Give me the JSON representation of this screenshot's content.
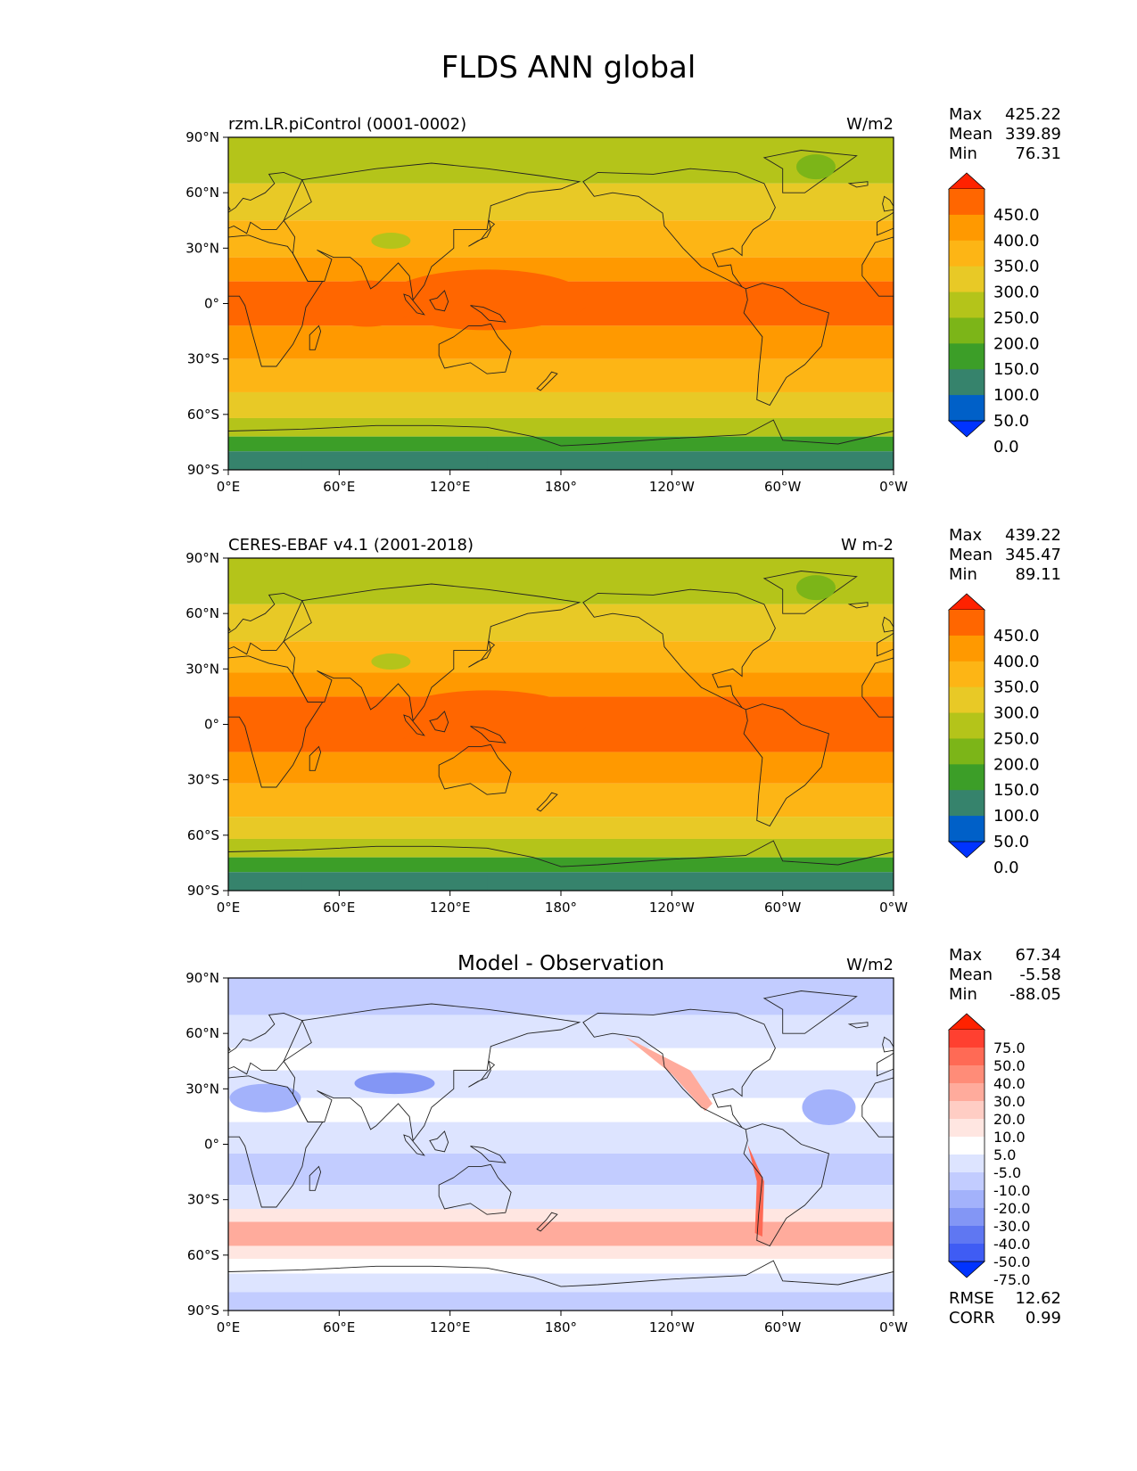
{
  "title": "FLDS ANN global",
  "x_ticks": [
    "0°E",
    "60°E",
    "120°E",
    "180°",
    "120°W",
    "60°W",
    "0°W"
  ],
  "y_ticks": [
    "90°N",
    "60°N",
    "30°N",
    "0°",
    "30°S",
    "60°S",
    "90°S"
  ],
  "panels": [
    {
      "left_title": "rzm.LR.piControl (0001-0002)",
      "center_title": "",
      "units": "W/m2",
      "stats": [
        [
          "Max",
          "425.22"
        ],
        [
          "Mean",
          "339.89"
        ],
        [
          "Min",
          "76.31"
        ]
      ],
      "colorbar": {
        "labels": [
          "450.0",
          "400.0",
          "350.0",
          "300.0",
          "250.0",
          "200.0",
          "150.0",
          "100.0",
          "50.0",
          "0.0"
        ],
        "colors": [
          "#ff2200",
          "#ff6600",
          "#ff9900",
          "#fdb515",
          "#e8c926",
          "#b4c41a",
          "#7cb518",
          "#3c9e28",
          "#36836c",
          "#0060c8",
          "#0033ff"
        ]
      },
      "extra_stats": []
    },
    {
      "left_title": "CERES-EBAF v4.1 (2001-2018)",
      "center_title": "",
      "units": "W m-2",
      "stats": [
        [
          "Max",
          "439.22"
        ],
        [
          "Mean",
          "345.47"
        ],
        [
          "Min",
          "89.11"
        ]
      ],
      "colorbar": {
        "labels": [
          "450.0",
          "400.0",
          "350.0",
          "300.0",
          "250.0",
          "200.0",
          "150.0",
          "100.0",
          "50.0",
          "0.0"
        ],
        "colors": [
          "#ff2200",
          "#ff6600",
          "#ff9900",
          "#fdb515",
          "#e8c926",
          "#b4c41a",
          "#7cb518",
          "#3c9e28",
          "#36836c",
          "#0060c8",
          "#0033ff"
        ]
      },
      "extra_stats": []
    },
    {
      "left_title": "",
      "center_title": "Model - Observation",
      "units": "W/m2",
      "stats": [
        [
          "Max",
          "67.34"
        ],
        [
          "Mean",
          "-5.58"
        ],
        [
          "Min",
          "-88.05"
        ]
      ],
      "colorbar": {
        "labels": [
          "75.0",
          "50.0",
          "40.0",
          "30.0",
          "20.0",
          "10.0",
          "5.0",
          "-5.0",
          "-10.0",
          "-20.0",
          "-30.0",
          "-40.0",
          "-50.0",
          "-75.0"
        ],
        "colors": [
          "#ff2200",
          "#ff4030",
          "#ff6a55",
          "#ff8c78",
          "#ffab9c",
          "#ffcdc4",
          "#ffe6e1",
          "#ffffff",
          "#dde4ff",
          "#c2ccff",
          "#a3b2fb",
          "#8396f5",
          "#5f77f2",
          "#3f5cf4",
          "#0033ff"
        ]
      },
      "extra_stats": [
        [
          "RMSE",
          "12.62"
        ],
        [
          "CORR",
          "0.99"
        ]
      ]
    }
  ]
}
